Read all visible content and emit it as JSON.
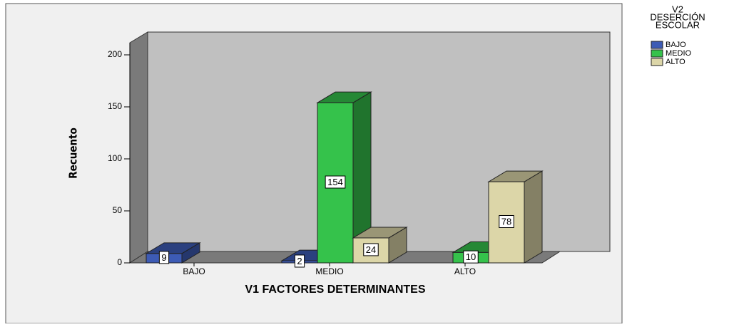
{
  "chart_data": {
    "type": "bar3d",
    "x_label": "V1 FACTORES DETERMINANTES",
    "y_label": "Recuento",
    "legend_title": [
      "V2",
      "DESERCIÓN",
      "ESCOLAR"
    ],
    "legend_position": "right",
    "categories": [
      "BAJO",
      "MEDIO",
      "ALTO"
    ],
    "series": [
      {
        "name": "BAJO",
        "color": "#3d5bb5",
        "values": [
          9,
          2,
          null
        ]
      },
      {
        "name": "MEDIO",
        "color": "#35c24b",
        "values": [
          null,
          154,
          10
        ]
      },
      {
        "name": "ALTO",
        "color": "#dcd6a8",
        "values": [
          null,
          24,
          78
        ]
      }
    ],
    "ylim": [
      0,
      200
    ],
    "yticks": [
      0,
      50,
      100,
      150,
      200
    ]
  }
}
